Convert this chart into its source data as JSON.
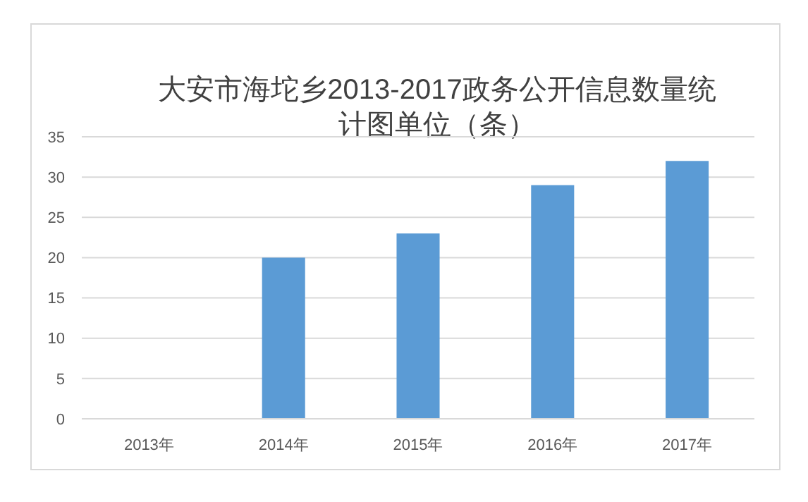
{
  "chart_data": {
    "type": "bar",
    "title": "大安市海坨乡2013-2017政务公开信息数量统计图单位（条）",
    "categories": [
      "2013年",
      "2014年",
      "2015年",
      "2016年",
      "2017年"
    ],
    "values": [
      0,
      20,
      23,
      29,
      32
    ],
    "color": "#5b9bd5",
    "ylim": [
      0,
      35
    ],
    "yticks": [
      0,
      5,
      10,
      15,
      20,
      25,
      30,
      35
    ],
    "grid": "y"
  }
}
